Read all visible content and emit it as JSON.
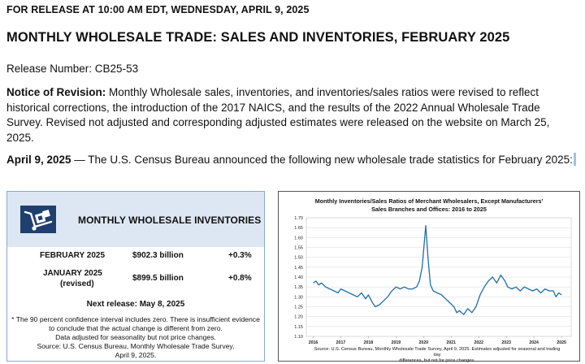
{
  "header": {
    "release_line": "FOR RELEASE AT 10:00 AM EDT, WEDNESDAY, APRIL 9, 2025",
    "title": "MONTHLY WHOLESALE TRADE: SALES AND INVENTORIES, FEBRUARY 2025",
    "release_number": "Release Number: CB25-53"
  },
  "revision": {
    "label": "Notice of Revision:",
    "text": " Monthly Wholesale sales, inventories, and inventories/sales ratios were revised to reflect historical corrections, the introduction of the 2017 NAICS, and the results of the 2022 Annual Wholesale Trade Survey. Revised not adjusted and corresponding adjusted estimates were released on the website on March 25, 2025."
  },
  "announce": {
    "date": "April 9, 2025",
    "text": " — The U.S. Census Bureau announced the following new wholesale trade statistics for February 2025:"
  },
  "inventories": {
    "heading": "MONTHLY WHOLESALE INVENTORIES",
    "icon": "dolly-boxes-icon",
    "rows": [
      {
        "period": "FEBRUARY 2025",
        "period_note": "",
        "value": "$902.3 billion",
        "change": "+0.3%"
      },
      {
        "period": "JANUARY 2025",
        "period_note": "(revised)",
        "value": "$899.5 billion",
        "change": "+0.8%"
      }
    ],
    "next_release": "Next release: May 8, 2025",
    "note_lines": [
      "* The 90 percent confidence interval includes zero. There is insufficient evidence",
      "to conclude that the actual change is different from zero.",
      "Data adjusted for seasonality but not price changes.",
      "Source: U.S. Census Bureau, Monthly Wholesale Trade Survey,",
      "April 9, 2025."
    ]
  },
  "chart": {
    "title_lines": [
      "Monthly Inventories/Sales Ratios of Merchant Wholesalers, Except Manufacturers'",
      "Sales Branches and Offices: 2016 to 2025"
    ],
    "source_lines": [
      "Source: U.S. Census Bureau, Monthly Wholesale Trade Survey, April 9, 2025. Estimates adjusted for seasonal and trading day",
      "differences, but not for price changes."
    ],
    "colors": {
      "line": "#1f6fa8",
      "grid": "#d9d9d9"
    }
  },
  "chart_data": {
    "type": "line",
    "title": "Monthly Inventories/Sales Ratios of Merchant Wholesalers, Except Manufacturers' Sales Branches and Offices: 2016 to 2025",
    "xlabel": "",
    "ylabel": "",
    "ylim": [
      1.1,
      1.7
    ],
    "yticks": [
      "1.70",
      "1.65",
      "1.60",
      "1.55",
      "1.50",
      "1.45",
      "1.40",
      "1.35",
      "1.30",
      "1.25",
      "1.20",
      "1.15",
      "1.10"
    ],
    "xticks": [
      "2016",
      "2017",
      "2018",
      "2019",
      "2020",
      "2021",
      "2022",
      "2023",
      "2024",
      "2025"
    ],
    "grid": true,
    "legend": "none",
    "series": [
      {
        "x": [
          2016.0,
          2016.1,
          2016.2,
          2016.3,
          2016.45,
          2016.6,
          2016.75,
          2016.9,
          2017.0,
          2017.15,
          2017.3,
          2017.45,
          2017.6,
          2017.75,
          2017.9,
          2018.0,
          2018.15,
          2018.25,
          2018.4,
          2018.55,
          2018.7,
          2018.85,
          2019.0,
          2019.15,
          2019.3,
          2019.45,
          2019.6,
          2019.75,
          2019.85,
          2019.95,
          2020.08,
          2020.17,
          2020.25,
          2020.35,
          2020.5,
          2020.65,
          2020.8,
          2020.95,
          2021.1,
          2021.2,
          2021.3,
          2021.45,
          2021.6,
          2021.75,
          2021.9,
          2022.05,
          2022.2,
          2022.35,
          2022.5,
          2022.65,
          2022.8,
          2022.95,
          2023.05,
          2023.2,
          2023.35,
          2023.5,
          2023.65,
          2023.8,
          2023.95,
          2024.1,
          2024.25,
          2024.4,
          2024.55,
          2024.7,
          2024.8,
          2024.9,
          2025.0
        ],
        "y": [
          1.37,
          1.38,
          1.36,
          1.37,
          1.35,
          1.34,
          1.33,
          1.32,
          1.34,
          1.33,
          1.32,
          1.31,
          1.3,
          1.32,
          1.29,
          1.31,
          1.27,
          1.25,
          1.26,
          1.28,
          1.3,
          1.33,
          1.35,
          1.34,
          1.35,
          1.34,
          1.34,
          1.35,
          1.38,
          1.45,
          1.66,
          1.48,
          1.36,
          1.33,
          1.32,
          1.31,
          1.29,
          1.27,
          1.25,
          1.22,
          1.23,
          1.21,
          1.24,
          1.22,
          1.25,
          1.31,
          1.35,
          1.38,
          1.4,
          1.37,
          1.41,
          1.38,
          1.35,
          1.34,
          1.35,
          1.33,
          1.35,
          1.34,
          1.33,
          1.34,
          1.32,
          1.34,
          1.33,
          1.33,
          1.3,
          1.32,
          1.31
        ]
      }
    ]
  }
}
